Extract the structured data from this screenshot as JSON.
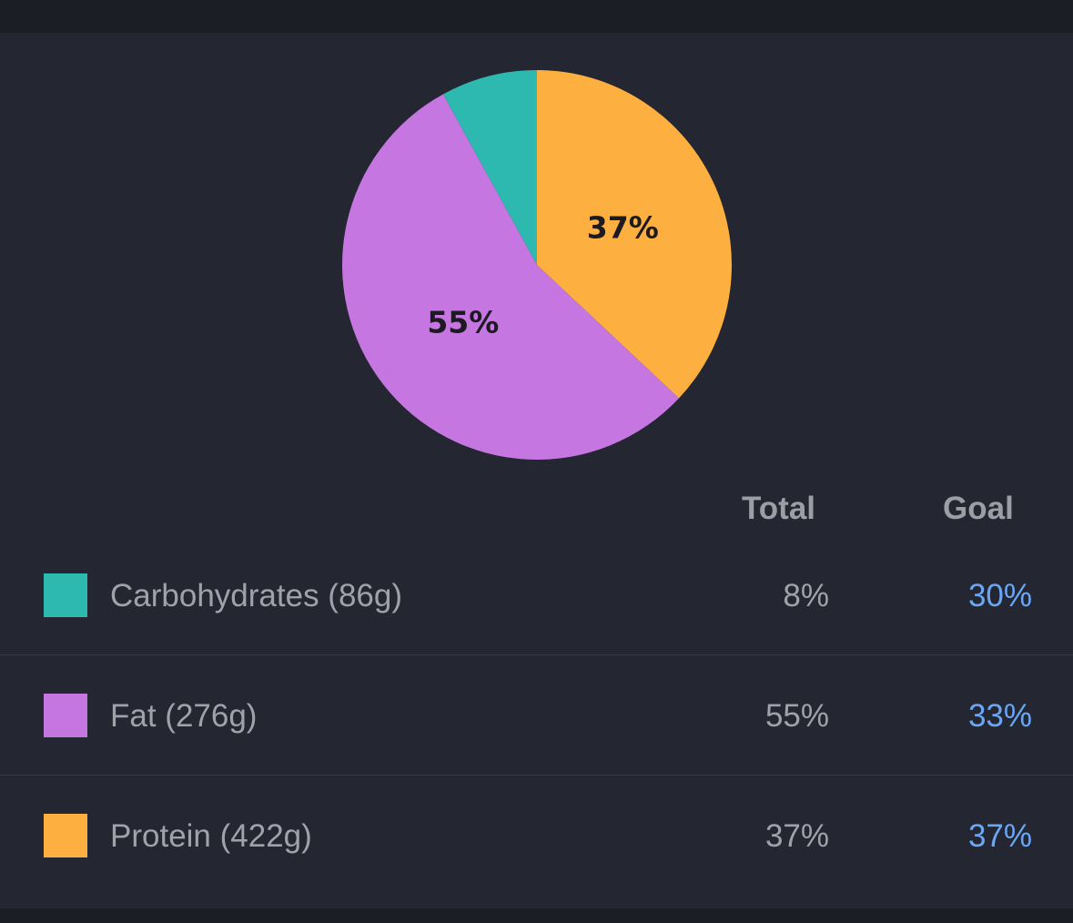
{
  "colors": {
    "carbohydrates": "#2db9b0",
    "fat": "#c576e0",
    "protein": "#fdb03f",
    "goal_text": "#6aa7f5",
    "muted_text": "#a0a2aa",
    "background": "#242631"
  },
  "chart_data": {
    "type": "pie",
    "slices": [
      {
        "name": "Protein",
        "value": 37,
        "color": "#fdb03f",
        "label": "37%"
      },
      {
        "name": "Fat",
        "value": 55,
        "color": "#c576e0",
        "label": "55%"
      },
      {
        "name": "Carbohydrates",
        "value": 8,
        "color": "#2db9b0",
        "label": ""
      }
    ]
  },
  "table": {
    "headers": {
      "total": "Total",
      "goal": "Goal"
    },
    "rows": [
      {
        "label": "Carbohydrates (86g)",
        "total": "8%",
        "goal": "30%",
        "color": "#2db9b0"
      },
      {
        "label": "Fat (276g)",
        "total": "55%",
        "goal": "33%",
        "color": "#c576e0"
      },
      {
        "label": "Protein (422g)",
        "total": "37%",
        "goal": "37%",
        "color": "#fdb03f"
      }
    ]
  }
}
